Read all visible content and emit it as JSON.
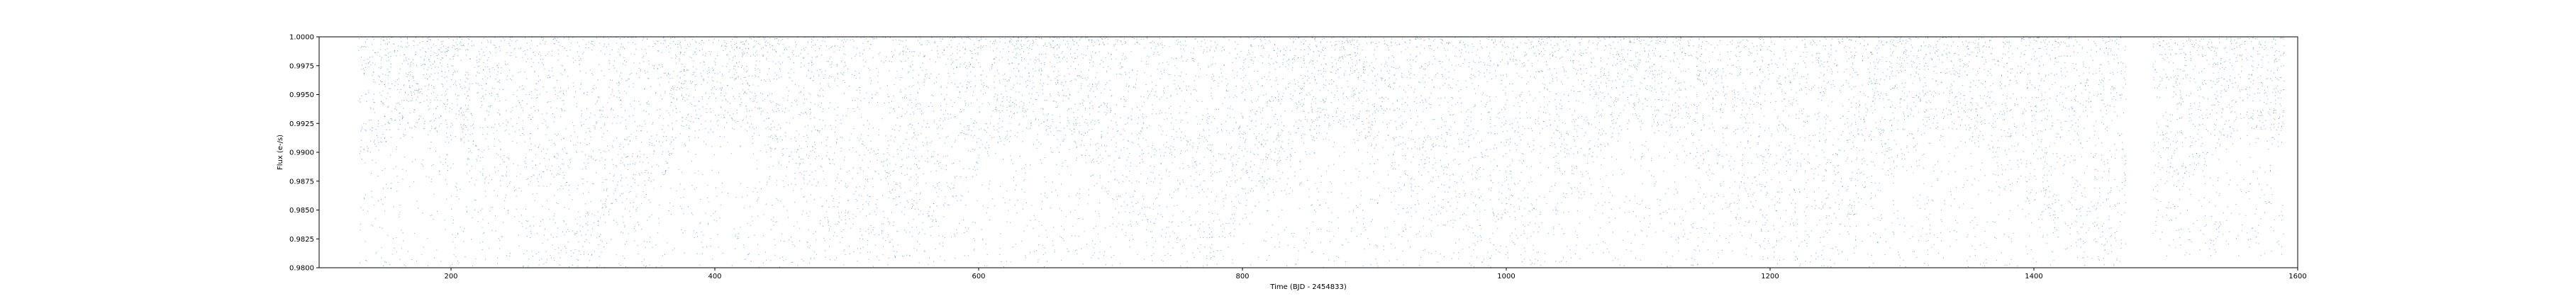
{
  "chart_data": {
    "type": "scatter",
    "title": "",
    "xlabel": "Time (BJD - 2454833)",
    "ylabel": "Flux (e-/s)",
    "xlim": [
      100,
      1600
    ],
    "ylim": [
      0.98,
      1.0
    ],
    "x_ticks": [
      200,
      400,
      600,
      800,
      1000,
      1200,
      1400,
      1600
    ],
    "y_ticks": [
      0.98,
      0.9825,
      0.985,
      0.9875,
      0.99,
      0.9925,
      0.995,
      0.9975,
      1.0
    ],
    "y_tick_labels": [
      "0.9800",
      "0.9825",
      "0.9850",
      "0.9875",
      "0.9900",
      "0.9925",
      "0.9950",
      "0.9975",
      "1.0000"
    ],
    "grid": false,
    "marker_color": "#1f77b4",
    "series": [
      {
        "segments": [
          {
            "x": [
              130,
              400
            ],
            "y_range": [
              0.98,
              1.0
            ]
          },
          {
            "x": [
              400,
              720
            ],
            "y_range": [
              0.98,
              1.0
            ]
          },
          {
            "x": [
              720,
              1100
            ],
            "y_range": [
              0.98,
              1.0
            ]
          },
          {
            "x": [
              1100,
              1470
            ],
            "y_range": [
              0.98,
              1.0
            ]
          },
          {
            "x": [
              1490,
              1590
            ],
            "y_range": [
              0.981,
              1.0
            ]
          }
        ]
      }
    ]
  }
}
